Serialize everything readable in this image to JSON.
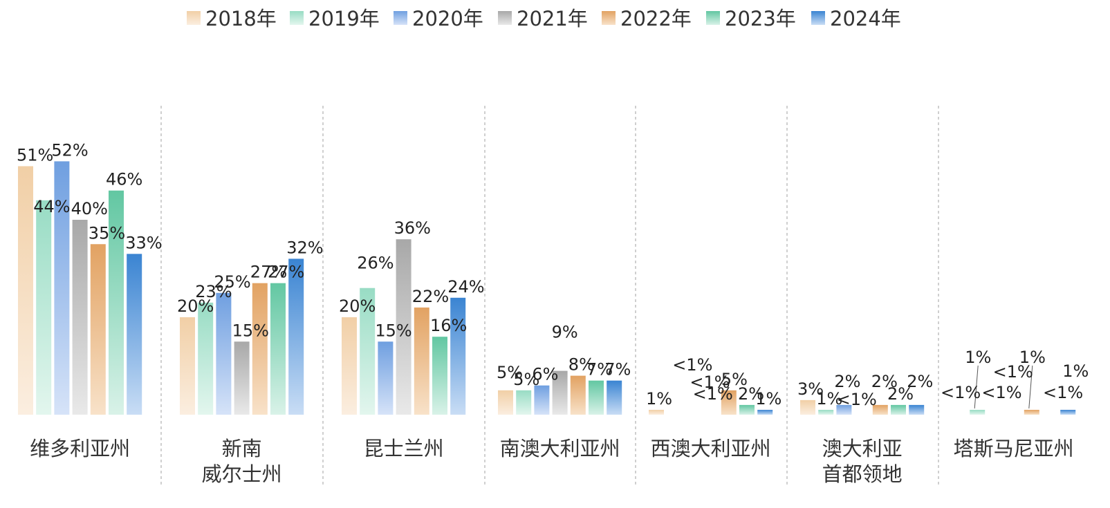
{
  "chart_data": {
    "type": "bar",
    "title": "",
    "xlabel": "",
    "ylabel": "",
    "ylim": [
      0,
      60
    ],
    "grid": false,
    "legend_position": "top-center",
    "categories": [
      [
        "维多利亚州"
      ],
      [
        "新南",
        "威尔士州"
      ],
      [
        "昆士兰州"
      ],
      [
        "南澳大利亚州"
      ],
      [
        "西澳大利亚州"
      ],
      [
        "澳大利亚",
        "首都领地"
      ],
      [
        "塔斯马尼亚州"
      ]
    ],
    "series": [
      {
        "name": "2018年",
        "color_top": "#f1cfa6",
        "color_bottom": "#fbeee0",
        "values": [
          51,
          20,
          20,
          5,
          1,
          3,
          0.5
        ],
        "labels": [
          "51%",
          "20%",
          "20%",
          "5%",
          "1%",
          "3%",
          "<1%"
        ]
      },
      {
        "name": "2019年",
        "color_top": "#98dcc4",
        "color_bottom": "#e3f6ee",
        "values": [
          44,
          23,
          26,
          5,
          0.5,
          1,
          1
        ],
        "labels": [
          "44%",
          "23%",
          "26%",
          "5%",
          "<1%",
          "1%",
          "1%"
        ]
      },
      {
        "name": "2020年",
        "color_top": "#6f9fe0",
        "color_bottom": "#d6e3f8",
        "values": [
          52,
          25,
          15,
          6,
          0.5,
          2,
          0.5
        ],
        "labels": [
          "52%",
          "25%",
          "15%",
          "6%",
          "<1%",
          "2%",
          "<1%"
        ]
      },
      {
        "name": "2021年",
        "color_top": "#a8a8a8",
        "color_bottom": "#e9e9e9",
        "values": [
          40,
          15,
          36,
          9,
          0.5,
          0.5,
          0.5
        ],
        "labels": [
          "40%",
          "15%",
          "36%",
          "9%",
          "<1%",
          "<1%",
          "<1%"
        ]
      },
      {
        "name": "2022年",
        "color_top": "#e2a262",
        "color_bottom": "#f8e2c9",
        "values": [
          35,
          27,
          22,
          8,
          5,
          2,
          1
        ],
        "labels": [
          "35%",
          "27%",
          "22%",
          "8%",
          "5%",
          "2%",
          "1%"
        ]
      },
      {
        "name": "2023年",
        "color_top": "#62c7a2",
        "color_bottom": "#d9f2e8",
        "values": [
          46,
          27,
          16,
          7,
          2,
          2,
          0.5
        ],
        "labels": [
          "46%",
          "27%",
          "16%",
          "7%",
          "2%",
          "2%",
          "<1%"
        ]
      },
      {
        "name": "2024年",
        "color_top": "#3a84d2",
        "color_bottom": "#c9ddf5",
        "values": [
          33,
          32,
          24,
          7,
          1,
          2,
          1
        ],
        "labels": [
          "33%",
          "32%",
          "24%",
          "7%",
          "1%",
          "2%",
          "1%"
        ]
      }
    ]
  }
}
